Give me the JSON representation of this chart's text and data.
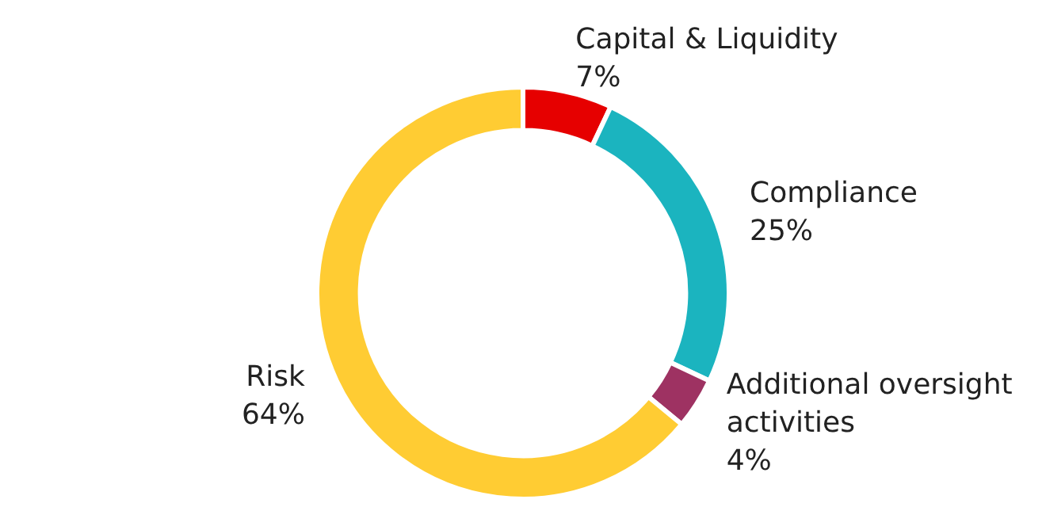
{
  "chart_data": {
    "type": "donut",
    "categories": [
      "Capital & Liquidity",
      "Compliance",
      "Additional oversight activities",
      "Risk"
    ],
    "values": [
      7,
      25,
      4,
      64
    ],
    "colors": [
      "#e60000",
      "#1bb4bf",
      "#9e3262",
      "#ffcc33"
    ],
    "value_labels": [
      "7%",
      "25%",
      "4%",
      "64%"
    ],
    "legend": false
  }
}
